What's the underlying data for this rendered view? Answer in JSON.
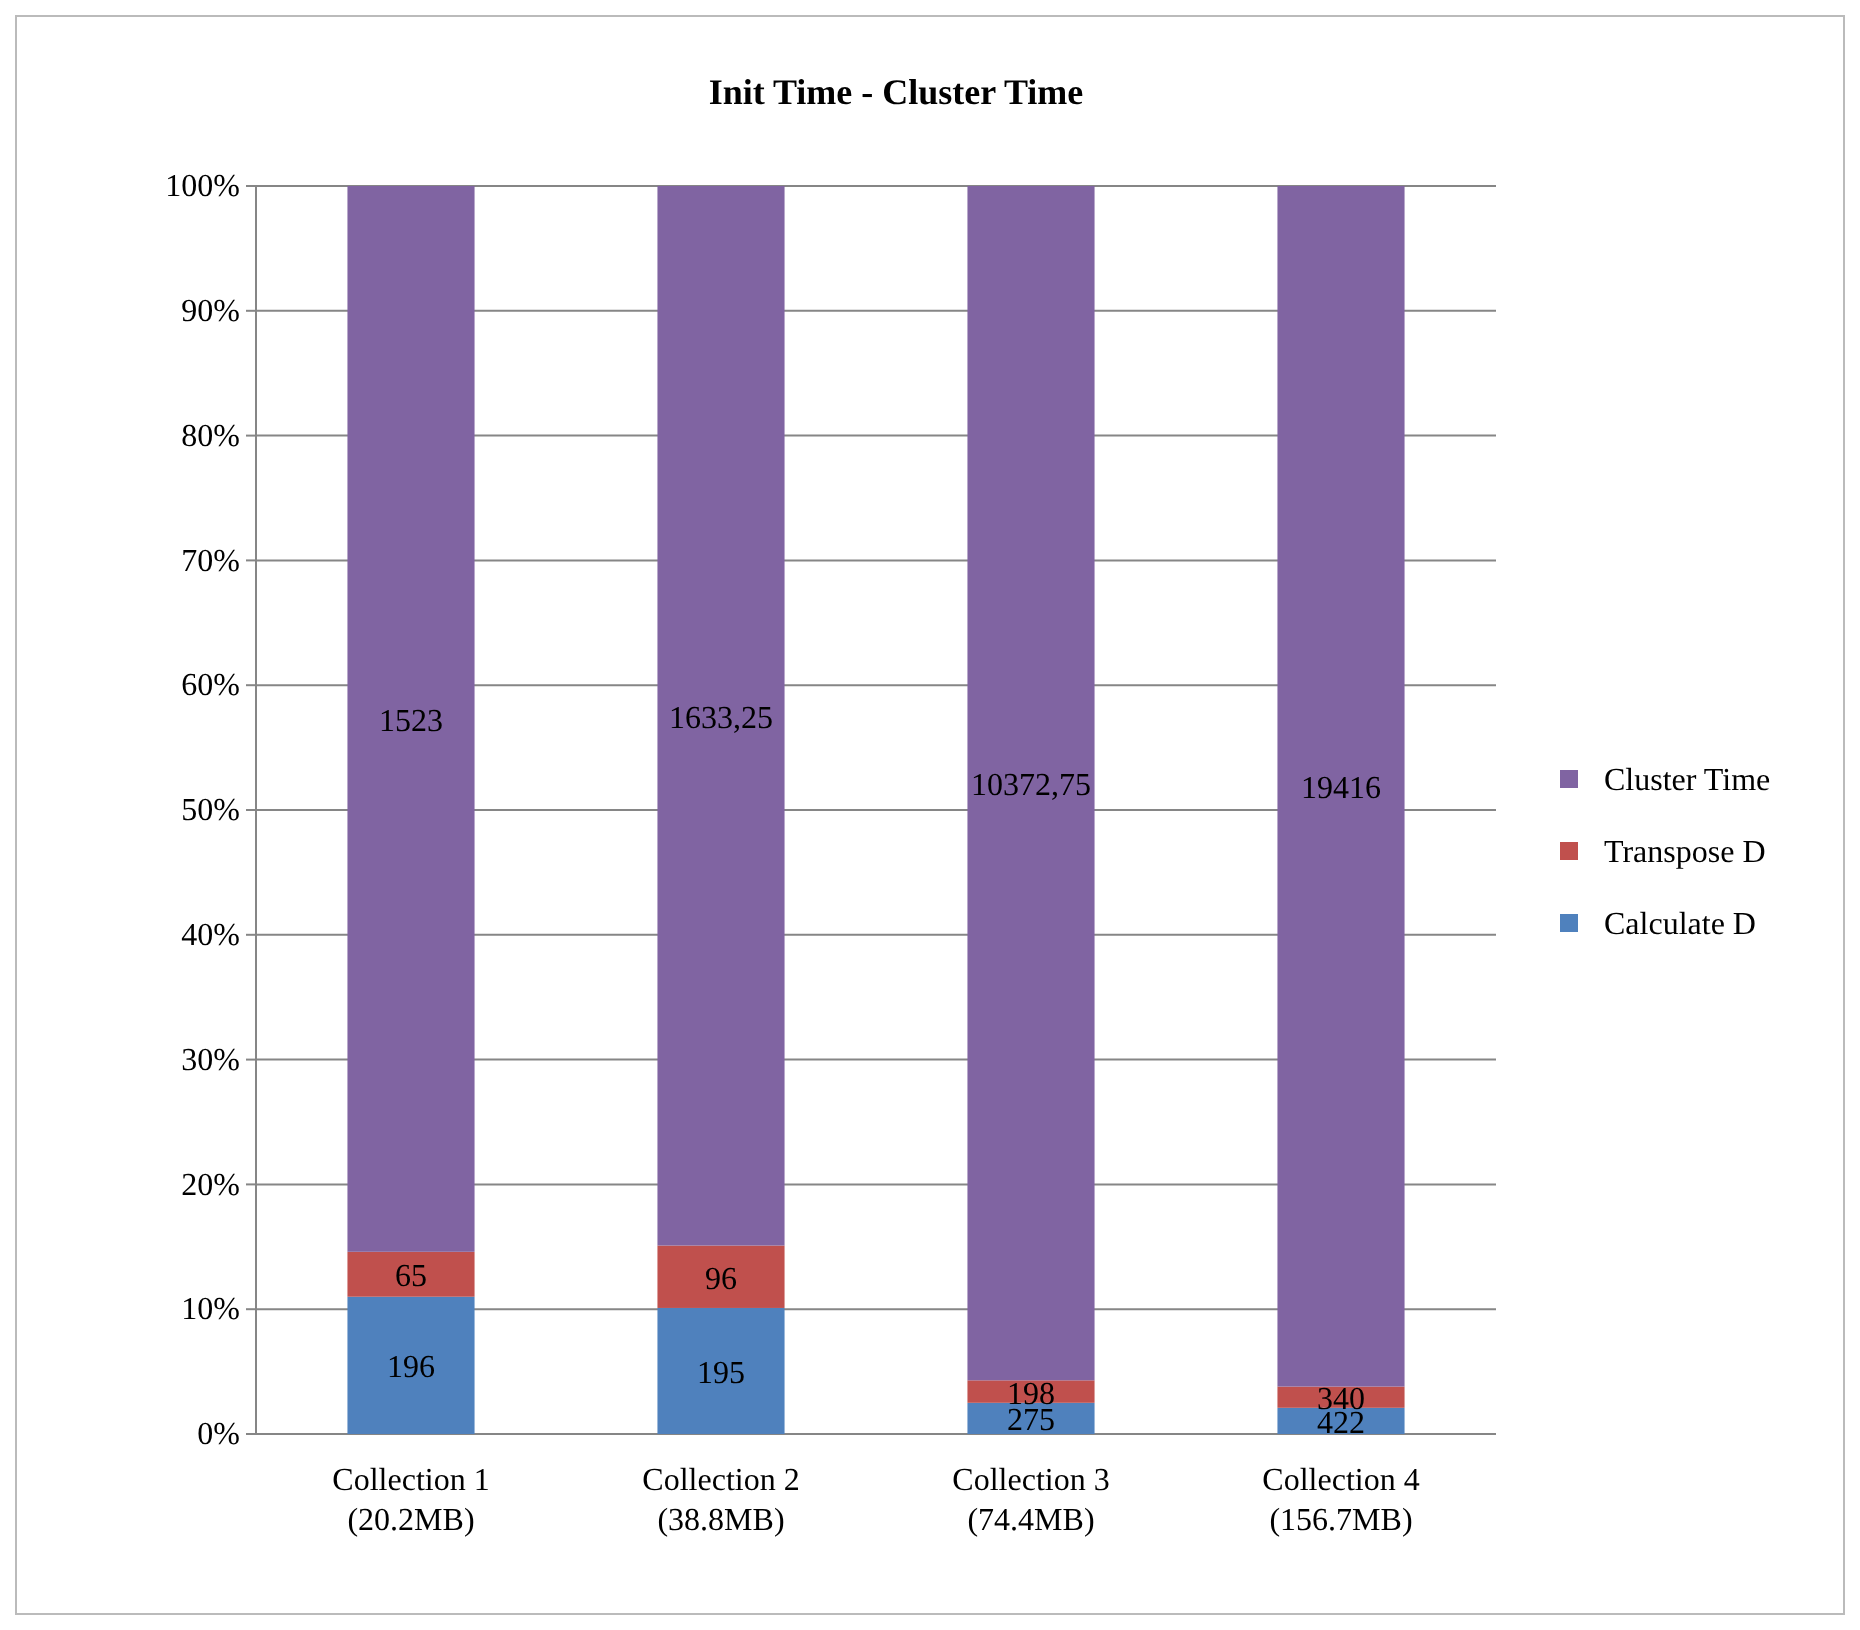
{
  "chart_data": {
    "type": "bar",
    "title": "Init Time - Cluster Time",
    "stacked": true,
    "categories": [
      "Collection 1\n(20.2MB)",
      "Collection 2\n(38.8MB)",
      "Collection 3\n(74.4MB)",
      "Collection 4\n(156.7MB)"
    ],
    "series": [
      {
        "name": "Calculate D",
        "color": "#4f81bd",
        "values": [
          11.0,
          10.1,
          2.5,
          2.1
        ]
      },
      {
        "name": "Transpose D",
        "color": "#c0504d",
        "values": [
          3.6,
          5.0,
          1.8,
          1.7
        ]
      },
      {
        "name": "Cluster Time",
        "color": "#8064a2",
        "values": [
          85.4,
          84.9,
          95.7,
          96.2
        ]
      }
    ],
    "annotations": [
      "196",
      "195",
      "275",
      "422",
      "65",
      "96",
      "198",
      "340",
      "1523",
      "1633,25",
      "10372,75",
      "19416"
    ],
    "ylim": [
      0,
      100
    ],
    "yticks": [
      {
        "value": 0,
        "label": "0%"
      },
      {
        "value": 10,
        "label": "10%"
      },
      {
        "value": 20,
        "label": "20%"
      },
      {
        "value": 30,
        "label": "30%"
      },
      {
        "value": 40,
        "label": "40%"
      },
      {
        "value": 50,
        "label": "50%"
      },
      {
        "value": 60,
        "label": "60%"
      },
      {
        "value": 70,
        "label": "70%"
      },
      {
        "value": 80,
        "label": "80%"
      },
      {
        "value": 90,
        "label": "90%"
      },
      {
        "value": 100,
        "label": "100%"
      }
    ],
    "grid": "y",
    "legend": "right"
  }
}
